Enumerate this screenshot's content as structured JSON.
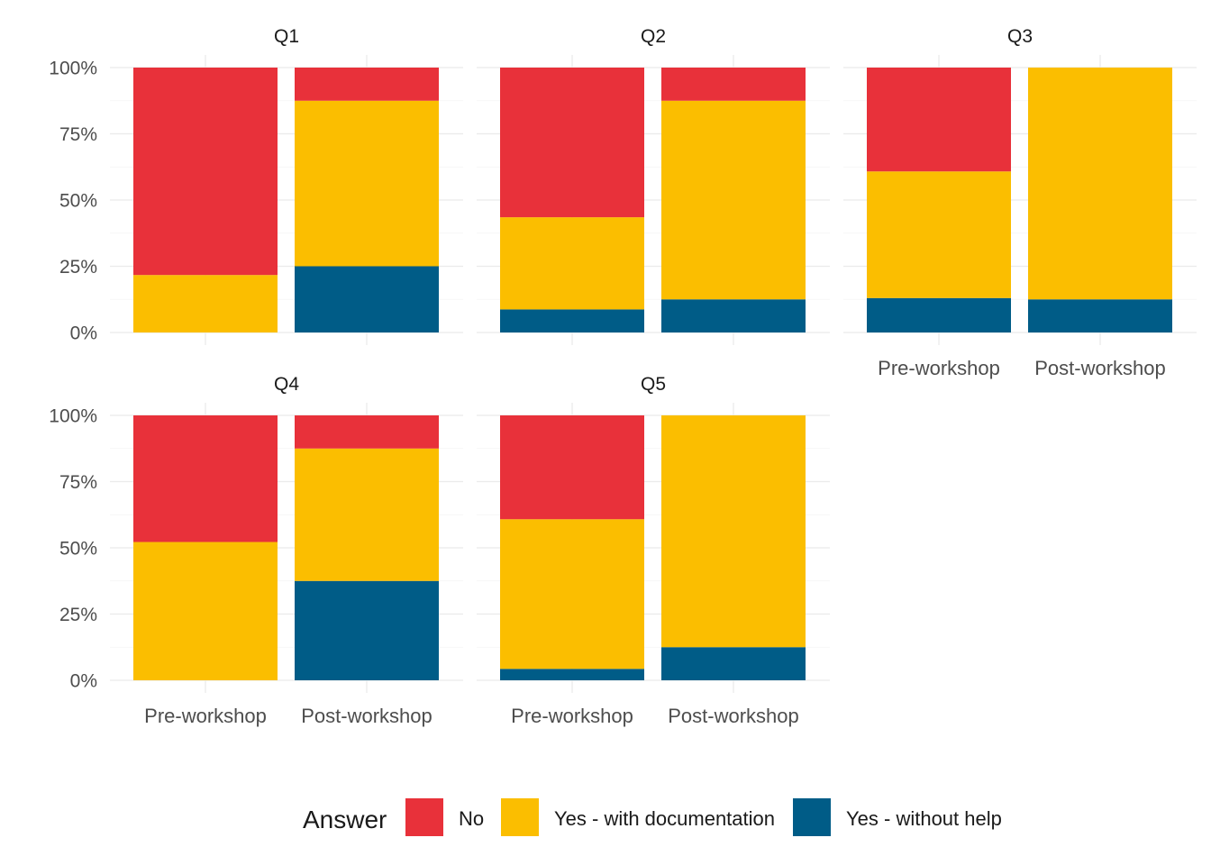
{
  "chart_data": {
    "type": "bar",
    "stacked": true,
    "categories": [
      "Pre-workshop",
      "Post-workshop"
    ],
    "facets": [
      "Q1",
      "Q2",
      "Q3",
      "Q4",
      "Q5"
    ],
    "yticks": [
      "0%",
      "25%",
      "50%",
      "75%",
      "100%"
    ],
    "ylim": [
      0,
      1
    ],
    "grid": true,
    "legend_position": "bottom",
    "legend": {
      "title": "Answer",
      "entries": [
        "No",
        "Yes - with documentation",
        "Yes - without help"
      ]
    },
    "colors": {
      "No": "#E8313A",
      "Yes - with documentation": "#FBBE00",
      "Yes - without help": "#005C87"
    },
    "panels": [
      {
        "facet": "Q1",
        "series": [
          {
            "name": "Yes - without help",
            "values": [
              0.0,
              0.25
            ]
          },
          {
            "name": "Yes - with documentation",
            "values": [
              0.217,
              0.625
            ]
          },
          {
            "name": "No",
            "values": [
              0.783,
              0.125
            ]
          }
        ]
      },
      {
        "facet": "Q2",
        "series": [
          {
            "name": "Yes - without help",
            "values": [
              0.087,
              0.125
            ]
          },
          {
            "name": "Yes - with documentation",
            "values": [
              0.348,
              0.75
            ]
          },
          {
            "name": "No",
            "values": [
              0.565,
              0.125
            ]
          }
        ]
      },
      {
        "facet": "Q3",
        "series": [
          {
            "name": "Yes - without help",
            "values": [
              0.13,
              0.125
            ]
          },
          {
            "name": "Yes - with documentation",
            "values": [
              0.478,
              0.875
            ]
          },
          {
            "name": "No",
            "values": [
              0.392,
              0.0
            ]
          }
        ]
      },
      {
        "facet": "Q4",
        "series": [
          {
            "name": "Yes - without help",
            "values": [
              0.0,
              0.375
            ]
          },
          {
            "name": "Yes - with documentation",
            "values": [
              0.522,
              0.5
            ]
          },
          {
            "name": "No",
            "values": [
              0.478,
              0.125
            ]
          }
        ]
      },
      {
        "facet": "Q5",
        "series": [
          {
            "name": "Yes - without help",
            "values": [
              0.043,
              0.125
            ]
          },
          {
            "name": "Yes - with documentation",
            "values": [
              0.565,
              0.875
            ]
          },
          {
            "name": "No",
            "values": [
              0.392,
              0.0
            ]
          }
        ]
      }
    ]
  }
}
